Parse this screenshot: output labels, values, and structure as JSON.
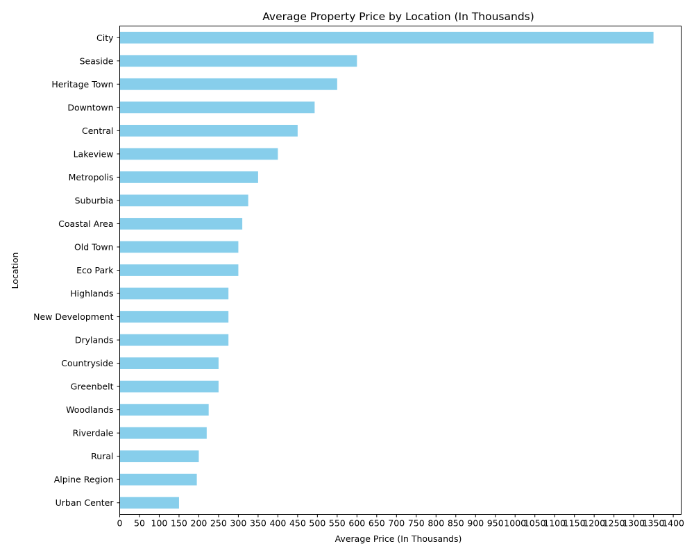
{
  "chart_data": {
    "type": "bar",
    "orientation": "horizontal",
    "title": "Average Property Price by Location (In Thousands)",
    "xlabel": "Average Price (In Thousands)",
    "ylabel": "Location",
    "xlim": [
      0,
      1420
    ],
    "xticks": [
      0,
      50,
      100,
      150,
      200,
      250,
      300,
      350,
      400,
      450,
      500,
      550,
      600,
      650,
      700,
      750,
      800,
      850,
      900,
      950,
      1000,
      1050,
      1100,
      1150,
      1200,
      1250,
      1300,
      1350,
      1400
    ],
    "bar_color": "#87CEEB",
    "grid": false,
    "legend": "none",
    "categories": [
      "City",
      "Seaside",
      "Heritage Town",
      "Downtown",
      "Central",
      "Lakeview",
      "Metropolis",
      "Suburbia",
      "Coastal Area",
      "Old Town",
      "Eco Park",
      "Highlands",
      "New Development",
      "Drylands",
      "Countryside",
      "Greenbelt",
      "Woodlands",
      "Riverdale",
      "Rural",
      "Alpine Region",
      "Urban Center"
    ],
    "values": [
      1350,
      600,
      550,
      493,
      450,
      400,
      350,
      325,
      310,
      300,
      300,
      275,
      275,
      275,
      250,
      250,
      225,
      220,
      200,
      195,
      150
    ]
  }
}
